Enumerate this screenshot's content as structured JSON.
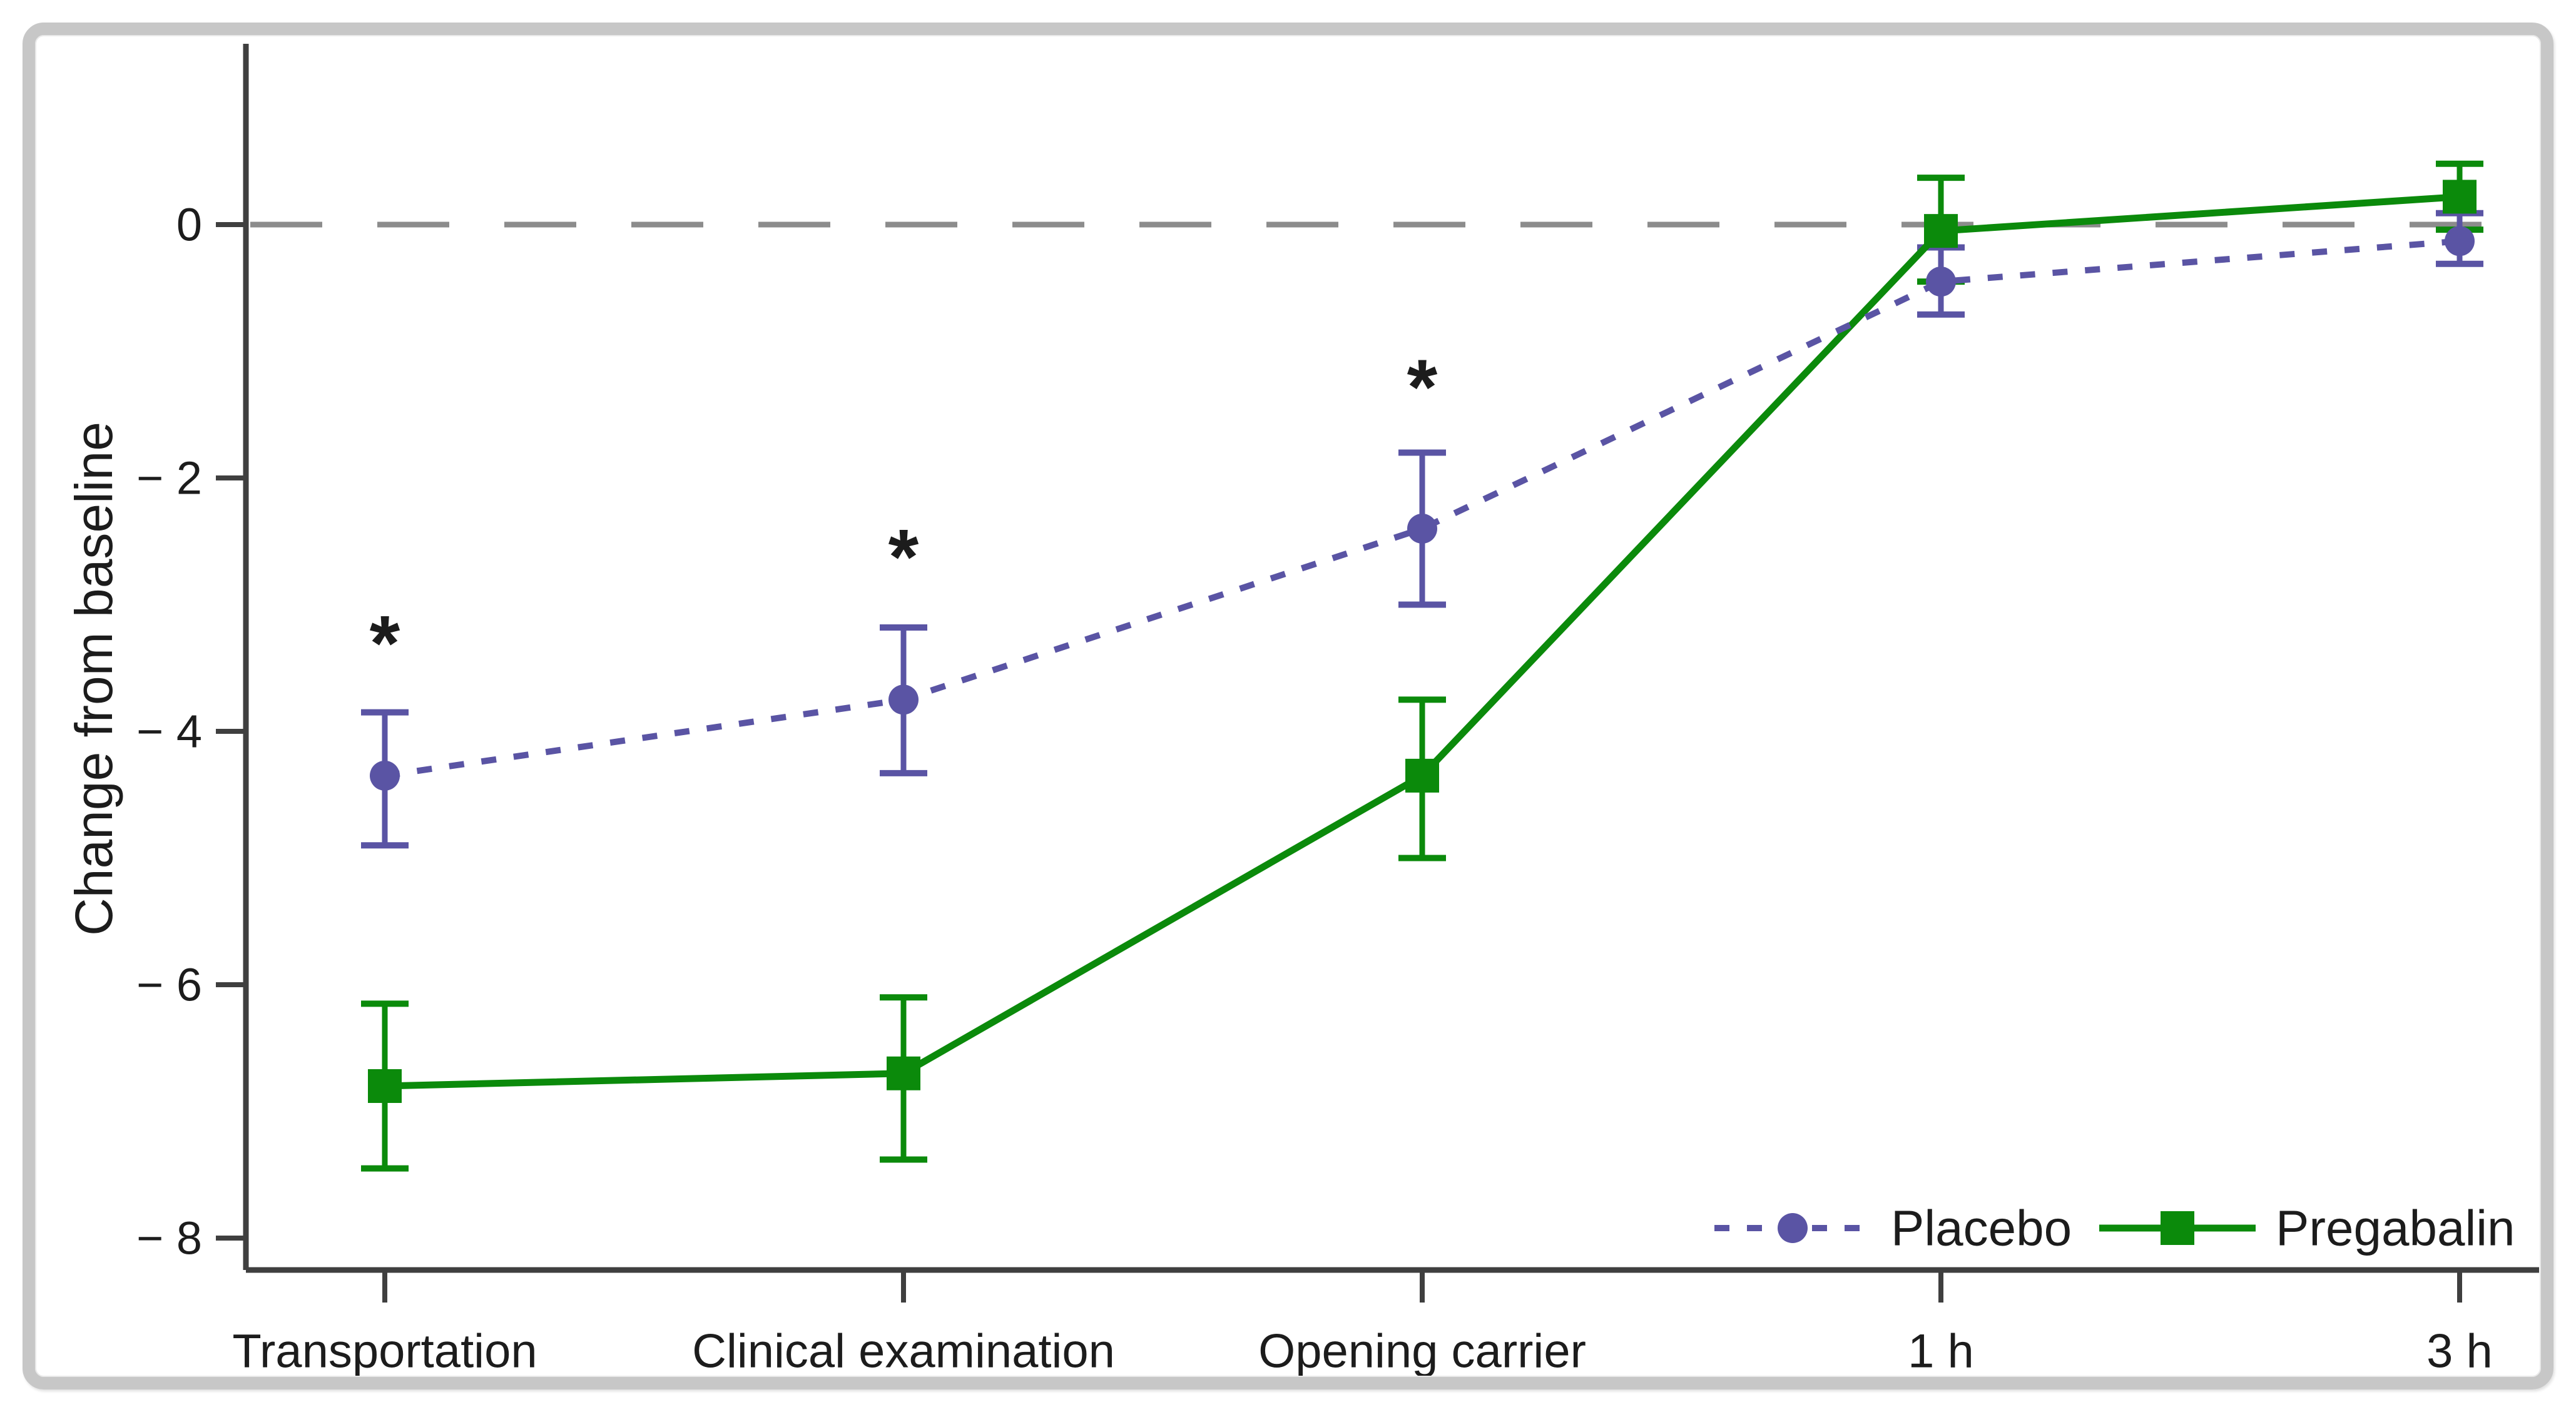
{
  "chart_data": {
    "type": "line",
    "title": "",
    "xlabel": "",
    "ylabel": "Change from baseline",
    "categories": [
      "Transportation",
      "Clinical examination",
      "Opening carrier",
      "1 h",
      "3 h"
    ],
    "yticks": {
      "values": [
        0,
        -2,
        -4,
        -6,
        -8
      ],
      "labels": [
        "0",
        "− 2",
        "− 4",
        "− 6",
        "− 8"
      ]
    },
    "ylim": [
      -8.25,
      1.42
    ],
    "grid": false,
    "zero_reference_line": true,
    "legend_position": "bottom-right-inside",
    "series": [
      {
        "name": "Pregabalin",
        "color": "#0b8a0b",
        "line_style": "solid",
        "marker": "square",
        "values": [
          -6.8,
          -6.7,
          -4.35,
          -0.05,
          0.22
        ],
        "err_up": [
          0.65,
          0.6,
          0.6,
          0.42,
          0.26
        ],
        "err_down": [
          0.65,
          0.68,
          0.65,
          0.4,
          0.26
        ]
      },
      {
        "name": "Placebo",
        "color": "#5a54a4",
        "line_style": "dotted",
        "marker": "circle",
        "values": [
          -4.35,
          -3.75,
          -2.4,
          -0.45,
          -0.13
        ],
        "err_up": [
          0.5,
          0.57,
          0.6,
          0.27,
          0.22
        ],
        "err_down": [
          0.55,
          0.58,
          0.6,
          0.26,
          0.18
        ]
      }
    ],
    "annotations": [
      {
        "text": "*",
        "category": "Transportation",
        "category_index": 0,
        "y": -3.3
      },
      {
        "text": "*",
        "category": "Clinical examination",
        "category_index": 1,
        "y": -2.62
      },
      {
        "text": "*",
        "category": "Opening carrier",
        "category_index": 2,
        "y": -1.28
      }
    ]
  },
  "colors": {
    "axis": "#3f3f3f",
    "zero_line": "#8c8c8c",
    "text": "#1c1c1c",
    "frame_border": "#c7c7c7",
    "background": "#ffffff",
    "placebo": "#5a54a4",
    "pregabalin": "#0b8a0b"
  }
}
